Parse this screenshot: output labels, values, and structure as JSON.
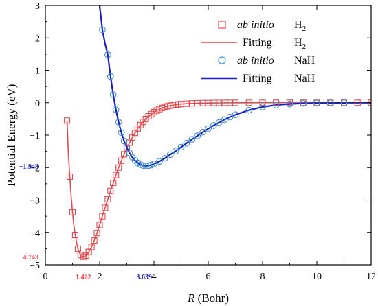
{
  "chart_data": {
    "type": "line",
    "xlabel": "R (Bohr)",
    "xlabel_var": "R",
    "xlabel_unit": " (Bohr)",
    "ylabel": "Potential Energy (eV)",
    "xlim": [
      0,
      12
    ],
    "ylim": [
      -5,
      3
    ],
    "xticks": [
      "0",
      "2",
      "4",
      "6",
      "8",
      "10",
      "12"
    ],
    "yticks": [
      "−5",
      "−4",
      "−3",
      "−2",
      "−1",
      "0",
      "1",
      "2",
      "3"
    ],
    "grid": false,
    "legend_position": "top-right",
    "legend": [
      {
        "marker": "square",
        "color": "#e8474c",
        "italic_text": "ab initio",
        "species": "H",
        "sub": "2"
      },
      {
        "marker": "line",
        "color": "#e8474c",
        "italic_text": "",
        "text": "Fitting",
        "species": "H",
        "sub": "2"
      },
      {
        "marker": "circle",
        "color": "#3b8fd0",
        "italic_text": "ab initio",
        "species": "NaH",
        "sub": ""
      },
      {
        "marker": "line",
        "color": "#1a1fbf",
        "italic_text": "",
        "text": "Fitting",
        "species": "NaH",
        "sub": ""
      }
    ],
    "series": [
      {
        "name": "ab initio H2",
        "kind": "points",
        "marker": "square",
        "color": "#e8474c",
        "x": [
          0.8,
          0.9,
          1.0,
          1.1,
          1.2,
          1.3,
          1.4,
          1.5,
          1.6,
          1.7,
          1.8,
          1.9,
          2.0,
          2.1,
          2.2,
          2.3,
          2.4,
          2.5,
          2.6,
          2.7,
          2.8,
          2.9,
          3.0,
          3.1,
          3.2,
          3.3,
          3.4,
          3.5,
          3.6,
          3.7,
          3.8,
          3.9,
          4.0,
          4.1,
          4.2,
          4.3,
          4.4,
          4.5,
          4.6,
          4.7,
          4.8,
          4.9,
          5.0,
          5.2,
          5.4,
          5.6,
          5.8,
          6.0,
          6.2,
          6.4,
          6.6,
          6.8,
          7.0,
          7.5,
          8.0,
          8.5,
          9.0,
          9.5,
          10.0,
          10.5,
          11.0,
          11.5,
          12.0
        ],
        "y": [
          -0.55,
          -2.28,
          -3.38,
          -4.08,
          -4.5,
          -4.7,
          -4.75,
          -4.71,
          -4.6,
          -4.45,
          -4.25,
          -4.02,
          -3.77,
          -3.5,
          -3.24,
          -2.98,
          -2.72,
          -2.47,
          -2.23,
          -2.0,
          -1.79,
          -1.59,
          -1.4,
          -1.23,
          -1.07,
          -0.93,
          -0.8,
          -0.69,
          -0.59,
          -0.5,
          -0.42,
          -0.35,
          -0.29,
          -0.24,
          -0.2,
          -0.16,
          -0.13,
          -0.11,
          -0.09,
          -0.07,
          -0.06,
          -0.05,
          -0.04,
          -0.03,
          -0.02,
          -0.015,
          -0.01,
          -0.01,
          -0.005,
          -0.005,
          -0.003,
          -0.002,
          -0.002,
          -0.001,
          0,
          0,
          0,
          0,
          0,
          0,
          0,
          0,
          0
        ]
      },
      {
        "name": "Fitting H2",
        "kind": "line",
        "color": "#e8474c",
        "x": [
          0.8,
          0.85,
          0.9,
          0.95,
          1.0,
          1.05,
          1.1,
          1.15,
          1.2,
          1.25,
          1.3,
          1.35,
          1.4,
          1.45,
          1.5,
          1.55,
          1.6,
          1.7,
          1.8,
          1.9,
          2.0,
          2.1,
          2.2,
          2.3,
          2.4,
          2.5,
          2.6,
          2.7,
          2.8,
          2.9,
          3.0,
          3.2,
          3.4,
          3.6,
          3.8,
          4.0,
          4.2,
          4.4,
          4.6,
          4.8,
          5.0,
          5.3,
          5.6,
          6.0,
          6.5,
          7.0,
          7.5,
          8.0,
          9.0,
          10.0,
          11.0,
          12.0
        ],
        "y": [
          -0.55,
          -1.6,
          -2.28,
          -2.88,
          -3.38,
          -3.78,
          -4.08,
          -4.31,
          -4.5,
          -4.62,
          -4.7,
          -4.74,
          -4.75,
          -4.74,
          -4.71,
          -4.66,
          -4.6,
          -4.45,
          -4.25,
          -4.02,
          -3.77,
          -3.5,
          -3.24,
          -2.98,
          -2.72,
          -2.47,
          -2.23,
          -2.0,
          -1.79,
          -1.59,
          -1.4,
          -1.07,
          -0.8,
          -0.59,
          -0.42,
          -0.29,
          -0.2,
          -0.13,
          -0.09,
          -0.06,
          -0.04,
          -0.025,
          -0.015,
          -0.01,
          -0.005,
          -0.002,
          -0.001,
          0,
          0,
          0,
          0,
          0
        ]
      },
      {
        "name": "ab initio NaH",
        "kind": "points",
        "marker": "circle",
        "color": "#3b8fd0",
        "x": [
          2.1,
          2.3,
          2.4,
          2.5,
          2.6,
          2.7,
          2.8,
          2.9,
          3.0,
          3.1,
          3.2,
          3.3,
          3.4,
          3.5,
          3.6,
          3.7,
          3.8,
          3.9,
          4.0,
          4.2,
          4.4,
          4.6,
          4.8,
          5.0,
          5.2,
          5.4,
          5.6,
          5.8,
          6.0,
          6.2,
          6.4,
          6.6,
          6.8,
          7.0,
          7.5,
          8.0,
          8.5,
          9.0,
          9.5,
          10.0,
          10.5,
          11.0
        ],
        "y": [
          2.25,
          1.48,
          0.81,
          0.25,
          -0.22,
          -0.6,
          -0.92,
          -1.18,
          -1.38,
          -1.55,
          -1.68,
          -1.78,
          -1.86,
          -1.91,
          -1.94,
          -1.948,
          -1.94,
          -1.92,
          -1.89,
          -1.81,
          -1.71,
          -1.6,
          -1.49,
          -1.37,
          -1.25,
          -1.13,
          -1.02,
          -0.91,
          -0.8,
          -0.7,
          -0.61,
          -0.52,
          -0.44,
          -0.37,
          -0.23,
          -0.13,
          -0.07,
          -0.04,
          -0.02,
          -0.01,
          -0.005,
          -0.002
        ]
      },
      {
        "name": "Fitting NaH",
        "kind": "line",
        "color": "#1a1fbf",
        "x": [
          2.0,
          2.1,
          2.2,
          2.3,
          2.4,
          2.5,
          2.6,
          2.7,
          2.8,
          2.9,
          3.0,
          3.1,
          3.2,
          3.3,
          3.4,
          3.5,
          3.6,
          3.7,
          3.8,
          3.9,
          4.0,
          4.2,
          4.4,
          4.6,
          4.8,
          5.0,
          5.2,
          5.4,
          5.6,
          5.8,
          6.0,
          6.2,
          6.4,
          6.6,
          6.8,
          7.0,
          7.5,
          8.0,
          8.5,
          9.0,
          9.5,
          10.0,
          11.0,
          12.0
        ],
        "y": [
          3.0,
          2.25,
          1.82,
          1.48,
          0.81,
          0.25,
          -0.22,
          -0.6,
          -0.92,
          -1.18,
          -1.38,
          -1.55,
          -1.68,
          -1.78,
          -1.86,
          -1.91,
          -1.94,
          -1.948,
          -1.94,
          -1.92,
          -1.89,
          -1.81,
          -1.71,
          -1.6,
          -1.49,
          -1.37,
          -1.25,
          -1.13,
          -1.02,
          -0.91,
          -0.8,
          -0.7,
          -0.61,
          -0.52,
          -0.44,
          -0.37,
          -0.23,
          -0.13,
          -0.07,
          -0.04,
          -0.02,
          -0.01,
          -0.002,
          0
        ]
      }
    ],
    "annotations": [
      {
        "text": "−4.743",
        "axis": "y",
        "value": -4.743,
        "color": "#e8474c"
      },
      {
        "text": "−1.948",
        "axis": "y",
        "value": -1.948,
        "color": "#1a1fbf"
      },
      {
        "text": "1.402",
        "axis": "x",
        "value": 1.402,
        "color": "#e8474c"
      },
      {
        "text": "3.639",
        "axis": "x",
        "value": 3.639,
        "color": "#1a1fbf"
      }
    ]
  }
}
